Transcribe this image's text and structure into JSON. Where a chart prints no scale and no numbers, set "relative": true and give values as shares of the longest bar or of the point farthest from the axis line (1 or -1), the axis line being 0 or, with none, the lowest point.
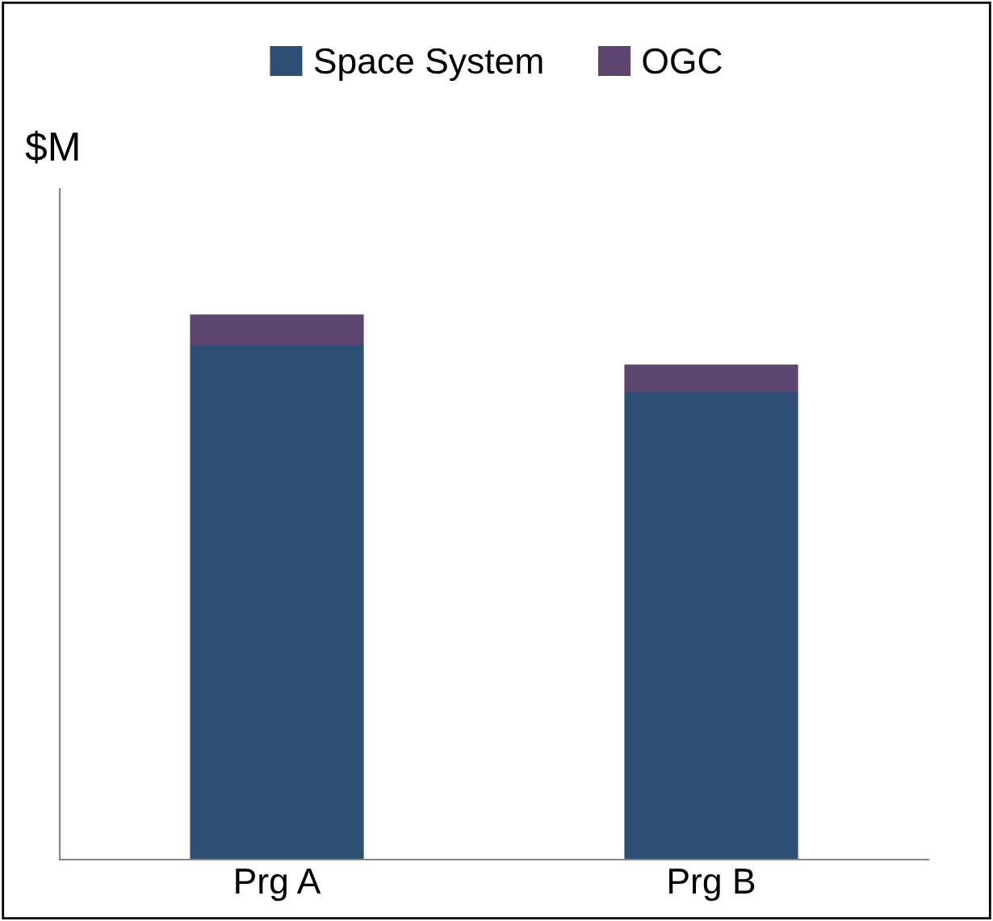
{
  "chart_data": {
    "type": "bar",
    "stacked": true,
    "relative": true,
    "ylabel": "$M",
    "categories": [
      "Prg A",
      "Prg B"
    ],
    "series": [
      {
        "name": "Space System",
        "color": "#2e4e74",
        "values": [
          0.944,
          0.858
        ]
      },
      {
        "name": "OGC",
        "color": "#5c4670",
        "values": [
          0.056,
          0.05
        ]
      }
    ],
    "legend": "top",
    "grid": false
  }
}
